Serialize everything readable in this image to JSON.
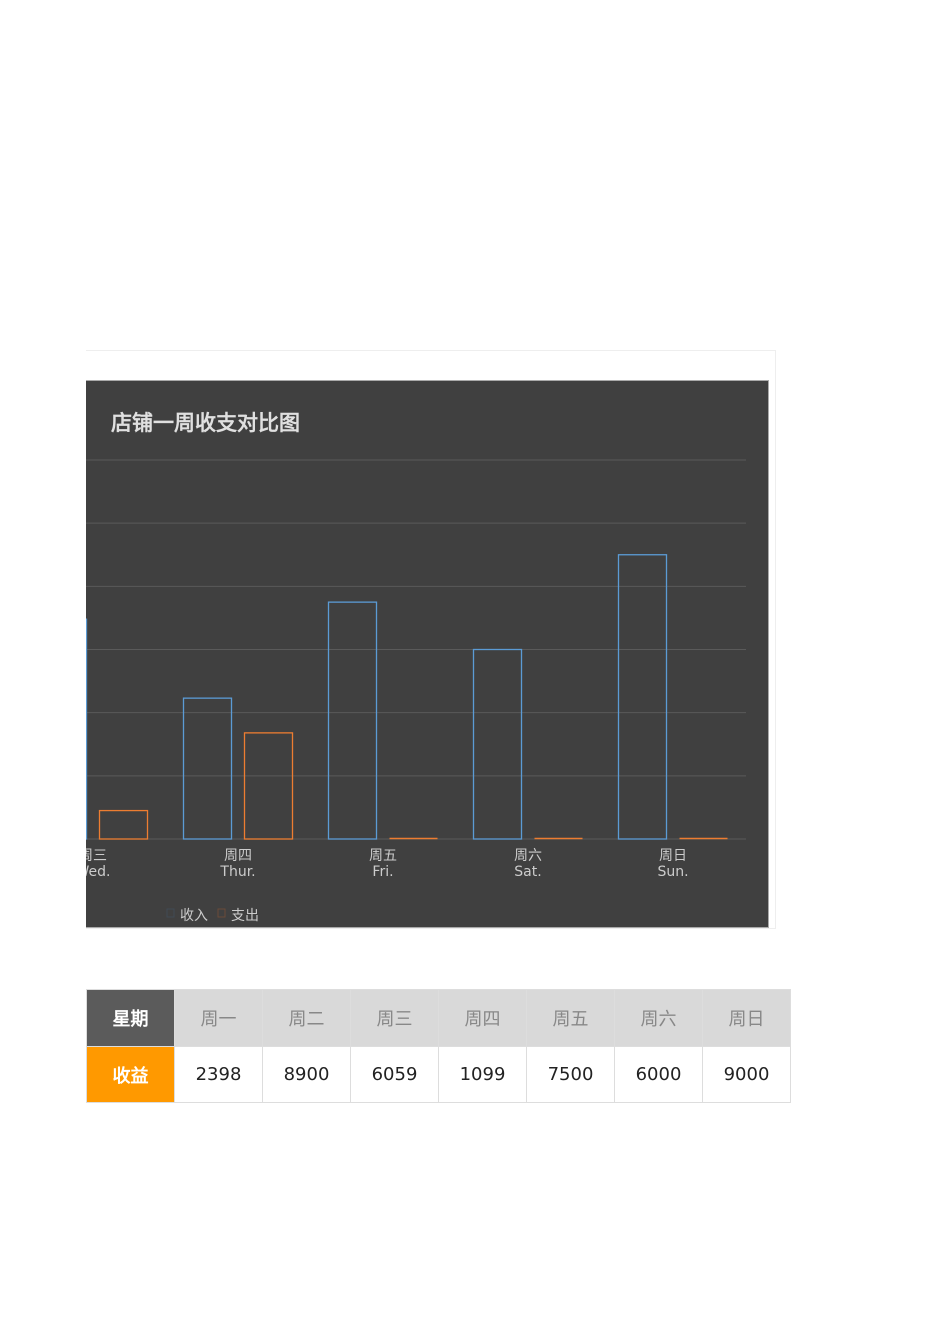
{
  "chart_data": {
    "type": "bar",
    "title": "店铺一周收支对比图",
    "categories": [
      {
        "cn": "周三",
        "en": "Wed."
      },
      {
        "cn": "周四",
        "en": "Thur."
      },
      {
        "cn": "周五",
        "en": "Fri."
      },
      {
        "cn": "周六",
        "en": "Sat."
      },
      {
        "cn": "周日",
        "en": "Sun."
      }
    ],
    "series": [
      {
        "name": "收入",
        "color": "#5b9bd5",
        "values": [
          6960,
          4460,
          7500,
          6000,
          9000
        ]
      },
      {
        "name": "支出",
        "color": "#ed7d31",
        "values": [
          900,
          3360,
          0,
          0,
          0
        ]
      }
    ],
    "ylim": [
      0,
      12000
    ],
    "grid": true,
    "legend": "bottom-left",
    "background": "#404040"
  },
  "table": {
    "header_label": "星期",
    "days": [
      "周一",
      "周二",
      "周三",
      "周四",
      "周五",
      "周六",
      "周日"
    ],
    "value_label": "收益",
    "values": [
      "2398",
      "8900",
      "6059",
      "1099",
      "7500",
      "6000",
      "9000"
    ]
  }
}
